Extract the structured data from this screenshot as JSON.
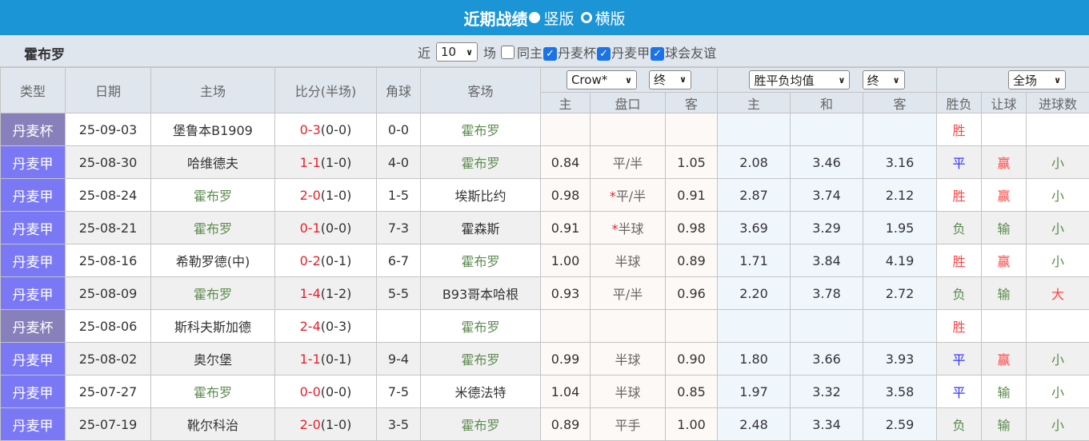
{
  "header": {
    "title": "近期战绩",
    "radio_vertical": "竖版",
    "radio_horizontal": "横版"
  },
  "filter": {
    "team": "霍布罗",
    "recent_prefix": "近",
    "recent_count": "10",
    "recent_suffix": "场",
    "same_home": "同主",
    "same_home_checked": false,
    "competitions": [
      {
        "label": "丹麦杯",
        "checked": true
      },
      {
        "label": "丹麦甲",
        "checked": true
      },
      {
        "label": "球会友谊",
        "checked": true
      }
    ]
  },
  "columns": {
    "type": "类型",
    "date": "日期",
    "home": "主场",
    "score": "比分(半场)",
    "corner": "角球",
    "away": "客场",
    "asian_company": "Crow*",
    "asian_stage": "终",
    "euro_type": "胜平负均值",
    "euro_stage": "终",
    "result_scope": "全场",
    "sub": [
      "主",
      "盘口",
      "客",
      "主",
      "和",
      "客",
      "胜负",
      "让球",
      "进球数"
    ]
  },
  "colors": {
    "cup": "#8880bb",
    "league": "#7b78f5",
    "header_bar": "#1b95d6"
  },
  "rows": [
    {
      "type": "丹麦杯",
      "date": "25-09-03",
      "home": "堡鲁本B1909",
      "ft": "0-3",
      "ht": "(0-0)",
      "corner": "0-0",
      "away": "霍布罗",
      "oh": "",
      "line": "",
      "oa": "",
      "e1": "",
      "ex": "",
      "e2": "",
      "res": "胜",
      "hc": "",
      "ou": ""
    },
    {
      "type": "丹麦甲",
      "date": "25-08-30",
      "home": "哈维德夫",
      "ft": "1-1",
      "ht": "(1-0)",
      "corner": "4-0",
      "away": "霍布罗",
      "oh": "0.84",
      "line": "平/半",
      "oa": "1.05",
      "e1": "2.08",
      "ex": "3.46",
      "e2": "3.16",
      "res": "平",
      "hc": "赢",
      "ou": "小"
    },
    {
      "type": "丹麦甲",
      "date": "25-08-24",
      "home": "霍布罗",
      "ft": "2-0",
      "ht": "(1-0)",
      "corner": "1-5",
      "away": "埃斯比约",
      "oh": "0.98",
      "star": "*",
      "line": "平/半",
      "oa": "0.91",
      "e1": "2.87",
      "ex": "3.74",
      "e2": "2.12",
      "res": "胜",
      "hc": "赢",
      "ou": "小"
    },
    {
      "type": "丹麦甲",
      "date": "25-08-21",
      "home": "霍布罗",
      "ft": "0-1",
      "ht": "(0-0)",
      "corner": "7-3",
      "away": "霍森斯",
      "oh": "0.91",
      "star": "*",
      "line": "半球",
      "oa": "0.98",
      "e1": "3.69",
      "ex": "3.29",
      "e2": "1.95",
      "res": "负",
      "hc": "输",
      "ou": "小"
    },
    {
      "type": "丹麦甲",
      "date": "25-08-16",
      "home": "希勒罗德(中)",
      "ft": "0-2",
      "ht": "(0-1)",
      "corner": "6-7",
      "away": "霍布罗",
      "oh": "1.00",
      "line": "半球",
      "oa": "0.89",
      "e1": "1.71",
      "ex": "3.84",
      "e2": "4.19",
      "res": "胜",
      "hc": "赢",
      "ou": "小"
    },
    {
      "type": "丹麦甲",
      "date": "25-08-09",
      "home": "霍布罗",
      "ft": "1-4",
      "ht": "(1-2)",
      "corner": "5-5",
      "away": "B93哥本哈根",
      "oh": "0.93",
      "line": "平/半",
      "oa": "0.96",
      "e1": "2.20",
      "ex": "3.78",
      "e2": "2.72",
      "res": "负",
      "hc": "输",
      "ou": "大"
    },
    {
      "type": "丹麦杯",
      "date": "25-08-06",
      "home": "斯科夫斯加德",
      "ft": "2-4",
      "ht": "(0-3)",
      "corner": "",
      "away": "霍布罗",
      "oh": "",
      "line": "",
      "oa": "",
      "e1": "",
      "ex": "",
      "e2": "",
      "res": "胜",
      "hc": "",
      "ou": ""
    },
    {
      "type": "丹麦甲",
      "date": "25-08-02",
      "home": "奥尔堡",
      "ft": "1-1",
      "ht": "(0-1)",
      "corner": "9-4",
      "away": "霍布罗",
      "oh": "0.99",
      "line": "半球",
      "oa": "0.90",
      "e1": "1.80",
      "ex": "3.66",
      "e2": "3.93",
      "res": "平",
      "hc": "赢",
      "ou": "小"
    },
    {
      "type": "丹麦甲",
      "date": "25-07-27",
      "home": "霍布罗",
      "ft": "0-0",
      "ht": "(0-0)",
      "corner": "7-5",
      "away": "米德法特",
      "oh": "1.04",
      "line": "半球",
      "oa": "0.85",
      "e1": "1.97",
      "ex": "3.32",
      "e2": "3.58",
      "res": "平",
      "hc": "输",
      "ou": "小"
    },
    {
      "type": "丹麦甲",
      "date": "25-07-19",
      "home": "靴尔科治",
      "ft": "2-0",
      "ht": "(1-0)",
      "corner": "3-5",
      "away": "霍布罗",
      "oh": "0.89",
      "line": "平手",
      "oa": "1.00",
      "e1": "2.48",
      "ex": "3.34",
      "e2": "2.59",
      "res": "负",
      "hc": "输",
      "ou": "小"
    }
  ]
}
